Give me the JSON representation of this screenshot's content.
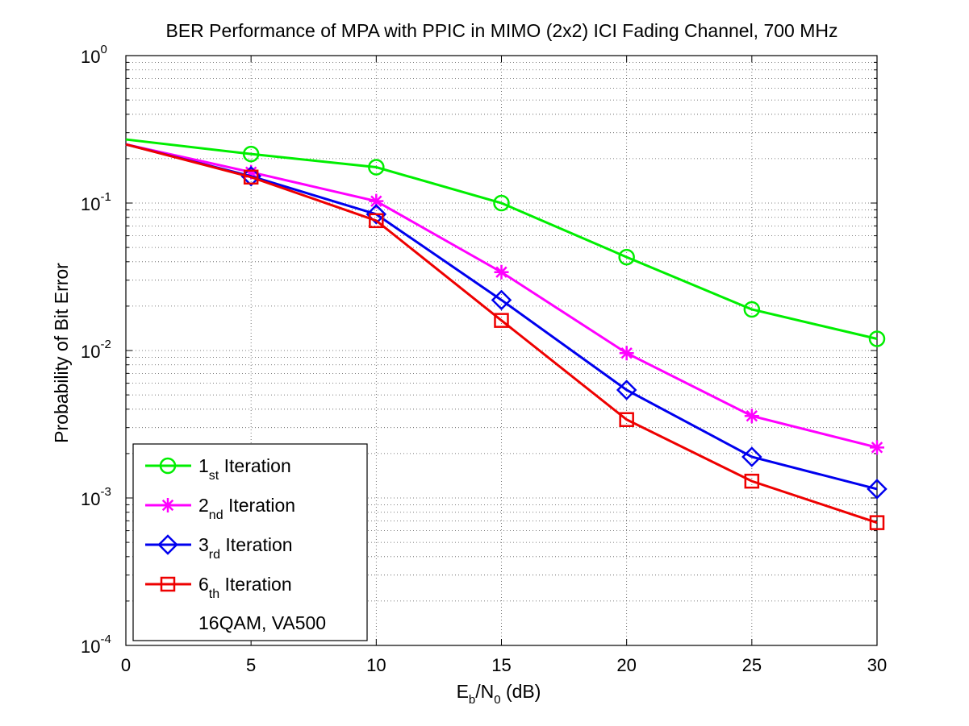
{
  "chart_data": {
    "type": "line",
    "title": "BER Performance of MPA with PPIC in MIMO (2x2) ICI Fading Channel, 700 MHz",
    "xlabel": {
      "main": "E",
      "sub1": "b",
      "mid": "/N",
      "sub2": "0",
      "tail": " (dB)"
    },
    "ylabel": "Probability of Bit Error",
    "xlim": [
      0,
      30
    ],
    "ylim": [
      0.0001,
      1
    ],
    "yscale": "log",
    "grid": true,
    "x_ticks": [
      "0",
      "5",
      "10",
      "15",
      "20",
      "25",
      "30"
    ],
    "y_ticks": [
      {
        "base": "10",
        "exp": "0"
      },
      {
        "base": "10",
        "exp": "-1"
      },
      {
        "base": "10",
        "exp": "-2"
      },
      {
        "base": "10",
        "exp": "-3"
      },
      {
        "base": "10",
        "exp": "-4"
      }
    ],
    "x": [
      0,
      5,
      10,
      15,
      20,
      25,
      30
    ],
    "series": [
      {
        "label_main": "1",
        "label_sub": "st",
        "label_tail": " Iteration",
        "color": "#00ee00",
        "marker": "circle",
        "values": [
          0.27,
          0.215,
          0.175,
          0.1,
          0.043,
          0.019,
          0.012
        ]
      },
      {
        "label_main": "2",
        "label_sub": "nd",
        "label_tail": " Iteration",
        "color": "#ff00ff",
        "marker": "star",
        "values": [
          0.25,
          0.162,
          0.103,
          0.034,
          0.0096,
          0.0036,
          0.0022
        ]
      },
      {
        "label_main": "3",
        "label_sub": "rd",
        "label_tail": " Iteration",
        "color": "#0000ee",
        "marker": "diamond",
        "values": [
          0.25,
          0.152,
          0.084,
          0.022,
          0.0054,
          0.0019,
          0.00115
        ]
      },
      {
        "label_main": "6",
        "label_sub": "th",
        "label_tail": " Iteration",
        "color": "#ee0000",
        "marker": "square",
        "values": [
          0.25,
          0.15,
          0.076,
          0.016,
          0.0034,
          0.0013,
          0.00068
        ]
      }
    ],
    "legend": {
      "position": "bottom-left",
      "note": "16QAM, VA500"
    }
  }
}
